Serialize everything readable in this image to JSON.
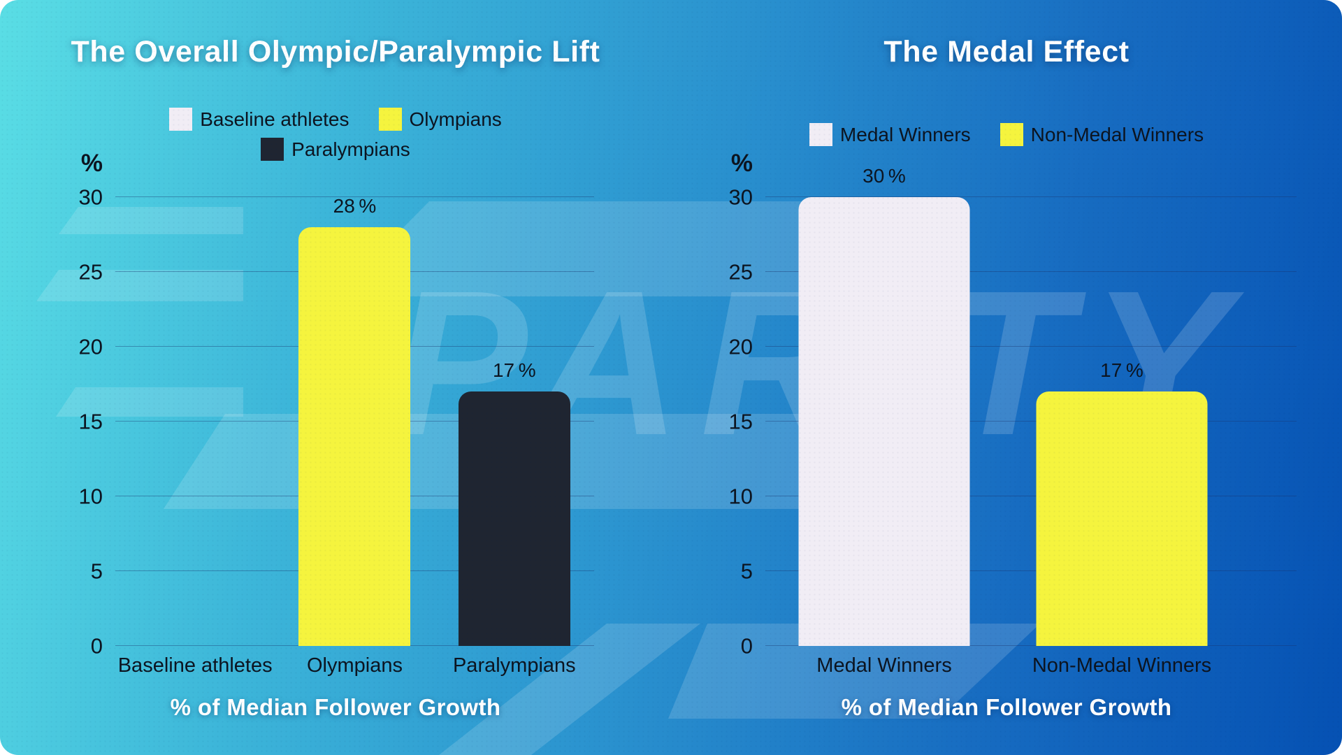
{
  "watermark": {
    "text": "PARITY"
  },
  "palette": {
    "background_top_left": "#5adee5",
    "background_bottom_right": "#0551b3",
    "bar_light": "#f1edf5",
    "bar_yellow": "#f5f43e",
    "bar_dark": "#1f2531",
    "label_dark": "#0c1420",
    "label_light": "#ffffff"
  },
  "chart_data": [
    {
      "type": "bar",
      "title": "The Overall Olympic/Paralympic Lift",
      "unit": "%",
      "xlabel": "% of Median Follower Growth",
      "ylabel": "%",
      "ylim": [
        0,
        30
      ],
      "yticks": [
        0,
        5,
        10,
        15,
        20,
        25,
        30
      ],
      "grid": true,
      "legend_position": "top",
      "categories": [
        "Baseline athletes",
        "Olympians",
        "Paralympians"
      ],
      "values": [
        0,
        28,
        17
      ],
      "value_labels": [
        "",
        "28 %",
        "17 %"
      ],
      "bar_colors": [
        "#f1edf5",
        "#f5f43e",
        "#1f2531"
      ],
      "legend": [
        {
          "label": "Baseline athletes",
          "color": "#f1edf5"
        },
        {
          "label": "Olympians",
          "color": "#f5f43e"
        },
        {
          "label": "Paralympians",
          "color": "#1f2531"
        }
      ]
    },
    {
      "type": "bar",
      "title": "The Medal Effect",
      "unit": "%",
      "xlabel": "% of Median Follower Growth",
      "ylabel": "%",
      "ylim": [
        0,
        30
      ],
      "yticks": [
        0,
        5,
        10,
        15,
        20,
        25,
        30
      ],
      "grid": true,
      "legend_position": "top",
      "categories": [
        "Medal Winners",
        "Non-Medal Winners"
      ],
      "values": [
        30,
        17
      ],
      "value_labels": [
        "30 %",
        "17 %"
      ],
      "bar_colors": [
        "#f1edf5",
        "#f5f43e"
      ],
      "legend": [
        {
          "label": "Medal Winners",
          "color": "#f1edf5"
        },
        {
          "label": "Non-Medal Winners",
          "color": "#f5f43e"
        }
      ]
    }
  ]
}
